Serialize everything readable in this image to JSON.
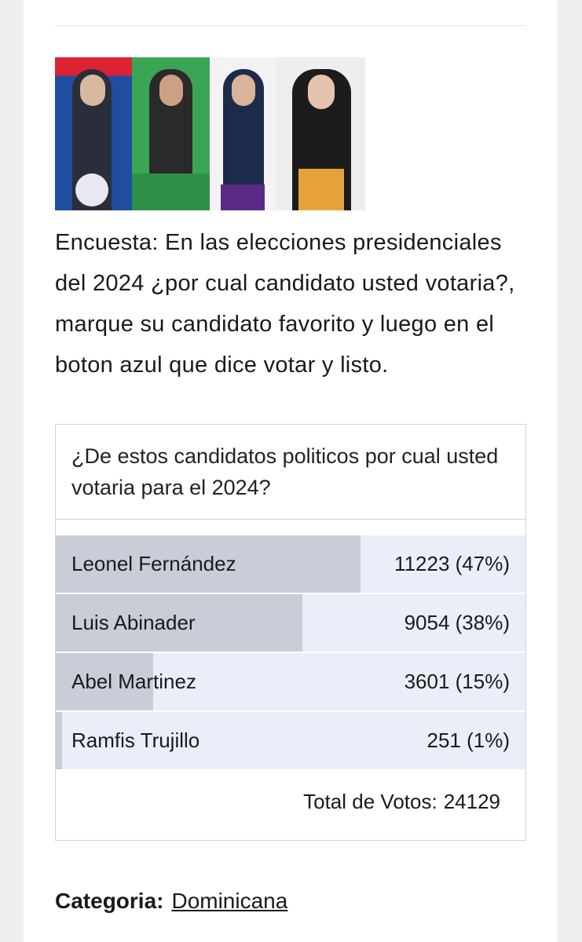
{
  "article": {
    "headline": "Encuesta: En las elecciones presidenciales del 2024 ¿por cual candidato usted votaria?, marque su candidato favorito y luego en el boton azul que dice votar y listo.",
    "poll": {
      "question": "¿De estos candidatos politicos por cual usted votaria para el 2024?",
      "options": [
        {
          "name": "Leonel Fernández",
          "percent": 47,
          "value_label": "11223 (47%)"
        },
        {
          "name": "Luis Abinader",
          "percent": 38,
          "value_label": "9054 (38%)"
        },
        {
          "name": "Abel Martinez",
          "percent": 15,
          "value_label": "3601 (15%)"
        },
        {
          "name": "Ramfis Trujillo",
          "percent": 1,
          "value_label": "251 (1%)"
        }
      ],
      "total_caption": "Total de Votos:",
      "total": 24129
    },
    "category_caption": "Categoria:",
    "category": "Dominicana"
  }
}
